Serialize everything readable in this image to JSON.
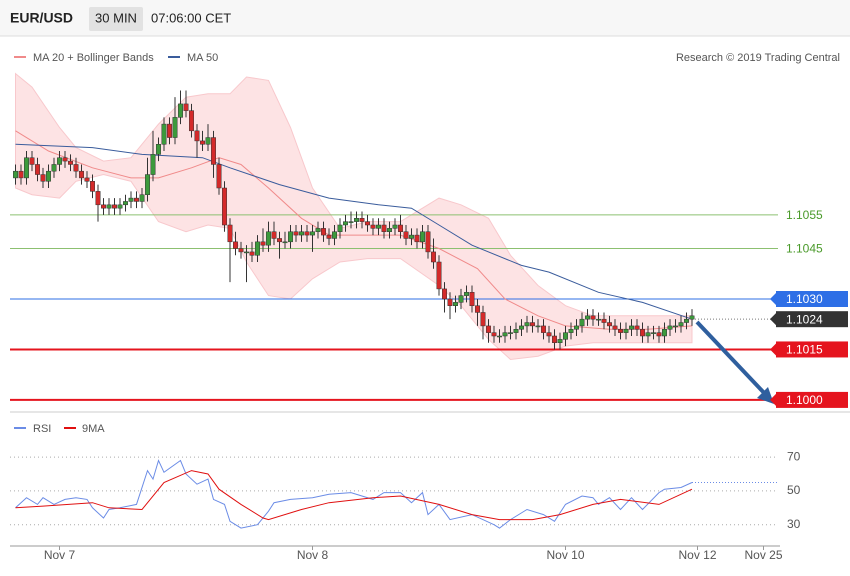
{
  "header": {
    "symbol": "EUR/USD",
    "interval": "30 MIN",
    "time": "07:06:00 CET"
  },
  "chart_data": [
    {
      "type": "candlestick",
      "xlim": [
        -1,
        139
      ],
      "ylim": [
        1.0997,
        1.1107
      ],
      "up_color": "#3c9a3c",
      "down_color": "#d42a2a",
      "credit": "Research © 2019 Trading Central",
      "candles": [
        [
          1.1066,
          1.107,
          1.1064,
          1.1068
        ],
        [
          1.1068,
          1.107,
          1.1064,
          1.1066
        ],
        [
          1.1066,
          1.1074,
          1.1064,
          1.1072
        ],
        [
          1.1072,
          1.1074,
          1.1068,
          1.107
        ],
        [
          1.107,
          1.1072,
          1.1065,
          1.1067
        ],
        [
          1.1067,
          1.1069,
          1.1063,
          1.1065
        ],
        [
          1.1065,
          1.107,
          1.1063,
          1.1068
        ],
        [
          1.1068,
          1.1072,
          1.1066,
          1.107
        ],
        [
          1.107,
          1.1074,
          1.1068,
          1.1072
        ],
        [
          1.1072,
          1.1074,
          1.1069,
          1.1071
        ],
        [
          1.1071,
          1.1073,
          1.1068,
          1.107
        ],
        [
          1.107,
          1.1072,
          1.1066,
          1.1068
        ],
        [
          1.1068,
          1.107,
          1.1064,
          1.1066
        ],
        [
          1.1066,
          1.1068,
          1.1063,
          1.1065
        ],
        [
          1.1065,
          1.1067,
          1.106,
          1.1062
        ],
        [
          1.1062,
          1.1064,
          1.1053,
          1.1058
        ],
        [
          1.1058,
          1.106,
          1.1055,
          1.1057
        ],
        [
          1.1057,
          1.106,
          1.1055,
          1.1058
        ],
        [
          1.1058,
          1.106,
          1.1055,
          1.1057
        ],
        [
          1.1057,
          1.106,
          1.1055,
          1.1058
        ],
        [
          1.1058,
          1.1061,
          1.1056,
          1.1059
        ],
        [
          1.1059,
          1.1062,
          1.1057,
          1.106
        ],
        [
          1.106,
          1.1062,
          1.1057,
          1.1059
        ],
        [
          1.1059,
          1.1063,
          1.1057,
          1.1061
        ],
        [
          1.1061,
          1.1072,
          1.1059,
          1.1067
        ],
        [
          1.1067,
          1.108,
          1.1065,
          1.1073
        ],
        [
          1.1073,
          1.1078,
          1.1071,
          1.1076
        ],
        [
          1.1076,
          1.1084,
          1.1074,
          1.1082
        ],
        [
          1.1082,
          1.1084,
          1.1076,
          1.1078
        ],
        [
          1.1078,
          1.109,
          1.1076,
          1.1084
        ],
        [
          1.1084,
          1.1092,
          1.1082,
          1.1088
        ],
        [
          1.1088,
          1.1092,
          1.1084,
          1.1086
        ],
        [
          1.1086,
          1.1088,
          1.1078,
          1.108
        ],
        [
          1.108,
          1.1082,
          1.1072,
          1.1077
        ],
        [
          1.1077,
          1.108,
          1.1074,
          1.1076
        ],
        [
          1.1076,
          1.1082,
          1.1074,
          1.1078
        ],
        [
          1.1078,
          1.108,
          1.1066,
          1.107
        ],
        [
          1.107,
          1.1072,
          1.1061,
          1.1063
        ],
        [
          1.1063,
          1.1065,
          1.105,
          1.1052
        ],
        [
          1.1052,
          1.1054,
          1.1035,
          1.1047
        ],
        [
          1.1047,
          1.105,
          1.1043,
          1.1045
        ],
        [
          1.1045,
          1.1047,
          1.1042,
          1.1044
        ],
        [
          1.1044,
          1.1046,
          1.1035,
          1.1044
        ],
        [
          1.1044,
          1.1047,
          1.1041,
          1.1043
        ],
        [
          1.1043,
          1.1049,
          1.1041,
          1.1047
        ],
        [
          1.1047,
          1.1051,
          1.1044,
          1.1046
        ],
        [
          1.1046,
          1.1053,
          1.1044,
          1.105
        ],
        [
          1.105,
          1.1053,
          1.1046,
          1.1048
        ],
        [
          1.1048,
          1.105,
          1.1042,
          1.1047
        ],
        [
          1.1047,
          1.105,
          1.1045,
          1.1047
        ],
        [
          1.1047,
          1.1052,
          1.1045,
          1.105
        ],
        [
          1.105,
          1.1052,
          1.1047,
          1.1049
        ],
        [
          1.1049,
          1.1052,
          1.1047,
          1.105
        ],
        [
          1.105,
          1.1052,
          1.1047,
          1.1049
        ],
        [
          1.1049,
          1.1052,
          1.1044,
          1.105
        ],
        [
          1.105,
          1.1053,
          1.1048,
          1.1051
        ],
        [
          1.1051,
          1.1053,
          1.1047,
          1.1049
        ],
        [
          1.1049,
          1.1051,
          1.1046,
          1.1048
        ],
        [
          1.1048,
          1.1052,
          1.1046,
          1.105
        ],
        [
          1.105,
          1.1054,
          1.1048,
          1.1052
        ],
        [
          1.1052,
          1.1055,
          1.105,
          1.1053
        ],
        [
          1.1053,
          1.1056,
          1.1051,
          1.1053
        ],
        [
          1.1053,
          1.1056,
          1.1051,
          1.1054
        ],
        [
          1.1054,
          1.1056,
          1.1051,
          1.1053
        ],
        [
          1.1053,
          1.1055,
          1.105,
          1.1052
        ],
        [
          1.1052,
          1.1054,
          1.1049,
          1.1051
        ],
        [
          1.1051,
          1.1054,
          1.1049,
          1.1052
        ],
        [
          1.1052,
          1.1054,
          1.1048,
          1.105
        ],
        [
          1.105,
          1.1053,
          1.1048,
          1.1051
        ],
        [
          1.1051,
          1.1054,
          1.1049,
          1.1052
        ],
        [
          1.1052,
          1.1055,
          1.1048,
          1.105
        ],
        [
          1.105,
          1.1052,
          1.1046,
          1.1048
        ],
        [
          1.1048,
          1.1051,
          1.1046,
          1.1049
        ],
        [
          1.1049,
          1.1051,
          1.1045,
          1.1047
        ],
        [
          1.1047,
          1.1052,
          1.1045,
          1.105
        ],
        [
          1.105,
          1.1052,
          1.1042,
          1.1044
        ],
        [
          1.1044,
          1.1048,
          1.1039,
          1.1041
        ],
        [
          1.1041,
          1.1043,
          1.1031,
          1.1033
        ],
        [
          1.1033,
          1.1035,
          1.1026,
          1.103
        ],
        [
          1.103,
          1.1032,
          1.1024,
          1.1028
        ],
        [
          1.1028,
          1.1031,
          1.1026,
          1.1029
        ],
        [
          1.1029,
          1.1033,
          1.1027,
          1.1031
        ],
        [
          1.1031,
          1.1034,
          1.1029,
          1.1032
        ],
        [
          1.1032,
          1.1034,
          1.1026,
          1.1028
        ],
        [
          1.1028,
          1.103,
          1.1022,
          1.1026
        ],
        [
          1.1026,
          1.1028,
          1.1018,
          1.1022
        ],
        [
          1.1022,
          1.1024,
          1.1017,
          1.102
        ],
        [
          1.102,
          1.1022,
          1.1017,
          1.1019
        ],
        [
          1.1019,
          1.1021,
          1.1017,
          1.1019
        ],
        [
          1.1019,
          1.1022,
          1.1017,
          1.102
        ],
        [
          1.102,
          1.1022,
          1.1018,
          1.102
        ],
        [
          1.102,
          1.1023,
          1.1018,
          1.1021
        ],
        [
          1.1021,
          1.1024,
          1.1019,
          1.1022
        ],
        [
          1.1022,
          1.1025,
          1.102,
          1.1023
        ],
        [
          1.1023,
          1.1025,
          1.102,
          1.1022
        ],
        [
          1.1022,
          1.1024,
          1.102,
          1.1022
        ],
        [
          1.1022,
          1.1024,
          1.1018,
          1.102
        ],
        [
          1.102,
          1.1022,
          1.1017,
          1.1019
        ],
        [
          1.1019,
          1.1021,
          1.1015,
          1.1017
        ],
        [
          1.1017,
          1.102,
          1.1015,
          1.1018
        ],
        [
          1.1018,
          1.1022,
          1.1016,
          1.102
        ],
        [
          1.102,
          1.1023,
          1.1018,
          1.1021
        ],
        [
          1.1021,
          1.1024,
          1.1019,
          1.1022
        ],
        [
          1.1022,
          1.1026,
          1.102,
          1.1024
        ],
        [
          1.1024,
          1.1027,
          1.1022,
          1.1025
        ],
        [
          1.1025,
          1.1027,
          1.1022,
          1.1024
        ],
        [
          1.1024,
          1.1026,
          1.1022,
          1.1024
        ],
        [
          1.1024,
          1.1026,
          1.1021,
          1.1023
        ],
        [
          1.1023,
          1.1025,
          1.102,
          1.1022
        ],
        [
          1.1022,
          1.1024,
          1.1019,
          1.1021
        ],
        [
          1.1021,
          1.1023,
          1.1018,
          1.102
        ],
        [
          1.102,
          1.1023,
          1.1018,
          1.1021
        ],
        [
          1.1021,
          1.1024,
          1.1019,
          1.1022
        ],
        [
          1.1022,
          1.1024,
          1.1019,
          1.1021
        ],
        [
          1.1021,
          1.1023,
          1.1017,
          1.1019
        ],
        [
          1.1019,
          1.1022,
          1.1017,
          1.102
        ],
        [
          1.102,
          1.1022,
          1.1018,
          1.102
        ],
        [
          1.102,
          1.1022,
          1.1017,
          1.1019
        ],
        [
          1.1019,
          1.1023,
          1.1017,
          1.1021
        ],
        [
          1.1021,
          1.1024,
          1.1019,
          1.1022
        ],
        [
          1.1022,
          1.1024,
          1.102,
          1.1022
        ],
        [
          1.1022,
          1.1025,
          1.102,
          1.1023
        ],
        [
          1.1023,
          1.1026,
          1.1021,
          1.1024
        ],
        [
          1.1024,
          1.1027,
          1.1022,
          1.1025
        ]
      ],
      "band": {
        "color": "#fde3e4",
        "x": [
          0,
          3,
          8,
          11,
          16,
          21,
          26,
          31,
          35,
          39,
          42,
          46,
          50,
          54,
          59,
          64,
          70,
          77,
          81,
          86,
          90,
          95,
          100,
          105,
          113,
          123
        ],
        "upper": [
          1.1097,
          1.1093,
          1.1081,
          1.1075,
          1.1071,
          1.1072,
          1.1082,
          1.109,
          1.1091,
          1.1091,
          1.1096,
          1.1095,
          1.1081,
          1.1063,
          1.1051,
          1.1053,
          1.1053,
          1.106,
          1.1058,
          1.1054,
          1.1043,
          1.1034,
          1.1028,
          1.1025,
          1.1025,
          1.1025
        ],
        "lower": [
          1.1063,
          1.1061,
          1.106,
          1.1065,
          1.1067,
          1.1065,
          1.1053,
          1.105,
          1.1052,
          1.1051,
          1.1041,
          1.1031,
          1.103,
          1.1036,
          1.1041,
          1.1042,
          1.1042,
          1.1034,
          1.1028,
          1.1018,
          1.1012,
          1.1013,
          1.1016,
          1.1017,
          1.1017,
          1.1017
        ]
      },
      "series": [
        {
          "name": "MA 20 + Bollinger Bands",
          "color": "#f08a8a",
          "x": [
            0,
            6,
            14,
            21,
            26,
            32,
            37,
            41,
            46,
            52,
            57,
            63,
            70,
            77,
            84,
            89,
            95,
            100,
            108,
            115,
            123
          ],
          "values": [
            1.108,
            1.1074,
            1.1069,
            1.1066,
            1.1066,
            1.1069,
            1.1072,
            1.107,
            1.1063,
            1.1054,
            1.1049,
            1.1049,
            1.1049,
            1.1045,
            1.1039,
            1.103,
            1.1025,
            1.1022,
            1.1021,
            1.1021,
            1.1022
          ]
        },
        {
          "name": "MA 50",
          "color": "#3a5c9c",
          "x": [
            0,
            14,
            23,
            34,
            39,
            48,
            57,
            66,
            72,
            77,
            83,
            92,
            97,
            106,
            114,
            123
          ],
          "values": [
            1.1076,
            1.1075,
            1.1073,
            1.1072,
            1.1069,
            1.1064,
            1.106,
            1.1058,
            1.1057,
            1.1052,
            1.1046,
            1.104,
            1.1038,
            1.1032,
            1.1029,
            1.1024
          ]
        }
      ],
      "levels": [
        {
          "price": 1.1055,
          "color": "#8cc070",
          "width": 1,
          "box": false,
          "style": "solid"
        },
        {
          "price": 1.1045,
          "color": "#8cc070",
          "width": 1,
          "box": false,
          "style": "solid"
        },
        {
          "price": {
            "value": 1.103,
            "label": "1.1030"
          },
          "color": "#2e6fe6",
          "width": 1,
          "box": true,
          "style": "solid"
        },
        {
          "price": 1.1024,
          "color": "#333333",
          "width": 1,
          "box": true,
          "style": "dotted"
        },
        {
          "price": 1.1015,
          "color": "#e5141e",
          "width": 2,
          "box": true,
          "style": "solid"
        },
        {
          "price": {
            "value": 1.1,
            "label": "1.1000"
          },
          "color": "#e5141e",
          "width": 2,
          "box": true,
          "style": "solid"
        }
      ]
    },
    {
      "type": "line",
      "xlim": [
        -1,
        139
      ],
      "ylim": [
        18,
        89
      ],
      "yticks": [
        30,
        50,
        70
      ],
      "grid": true,
      "xticks": [
        {
          "value": 8,
          "label": "Nov 7"
        },
        {
          "value": 54,
          "label": "Nov 8"
        },
        {
          "value": 100,
          "label": "Nov 10"
        },
        {
          "value": 124,
          "label": "Nov 12"
        },
        {
          "value": 136,
          "label": "Nov 25"
        }
      ],
      "series": [
        {
          "name": "RSI",
          "color": "#6b8ce6",
          "x": [
            0,
            2,
            4,
            5,
            7,
            9,
            11,
            13,
            14,
            16,
            17,
            19,
            22,
            24,
            25,
            26,
            27,
            30,
            31,
            33,
            35,
            36,
            38,
            39,
            41,
            44,
            46,
            47,
            50,
            54,
            57,
            61,
            65,
            67,
            70,
            72,
            74,
            75,
            77,
            79,
            83,
            87,
            88,
            90,
            93,
            96,
            98,
            100,
            103,
            105,
            106,
            108,
            110,
            112,
            114,
            117,
            118,
            121,
            123
          ],
          "values": [
            40,
            46,
            42,
            46,
            42,
            45,
            46,
            45,
            40,
            34,
            39,
            40,
            42,
            62,
            57,
            68,
            61,
            68,
            60,
            54,
            57,
            45,
            42,
            32,
            28,
            30,
            38,
            43,
            45,
            46,
            48,
            49,
            45,
            49,
            49,
            43,
            49,
            36,
            42,
            33,
            36,
            30,
            28,
            33,
            39,
            36,
            32,
            42,
            47,
            46,
            42,
            46,
            39,
            46,
            39,
            49,
            51,
            52,
            55
          ]
        },
        {
          "name": "9MA",
          "color": "#e01010",
          "x": [
            0,
            5,
            14,
            17,
            23,
            27,
            32,
            35,
            37,
            41,
            45,
            46,
            52,
            57,
            65,
            70,
            77,
            83,
            88,
            94,
            99,
            105,
            110,
            117,
            123
          ],
          "values": [
            40,
            41,
            43,
            40,
            39,
            55,
            62,
            60,
            51,
            42,
            34,
            33,
            39,
            43,
            46,
            47,
            42,
            36,
            33,
            33,
            36,
            42,
            45,
            42,
            51
          ]
        }
      ]
    }
  ]
}
